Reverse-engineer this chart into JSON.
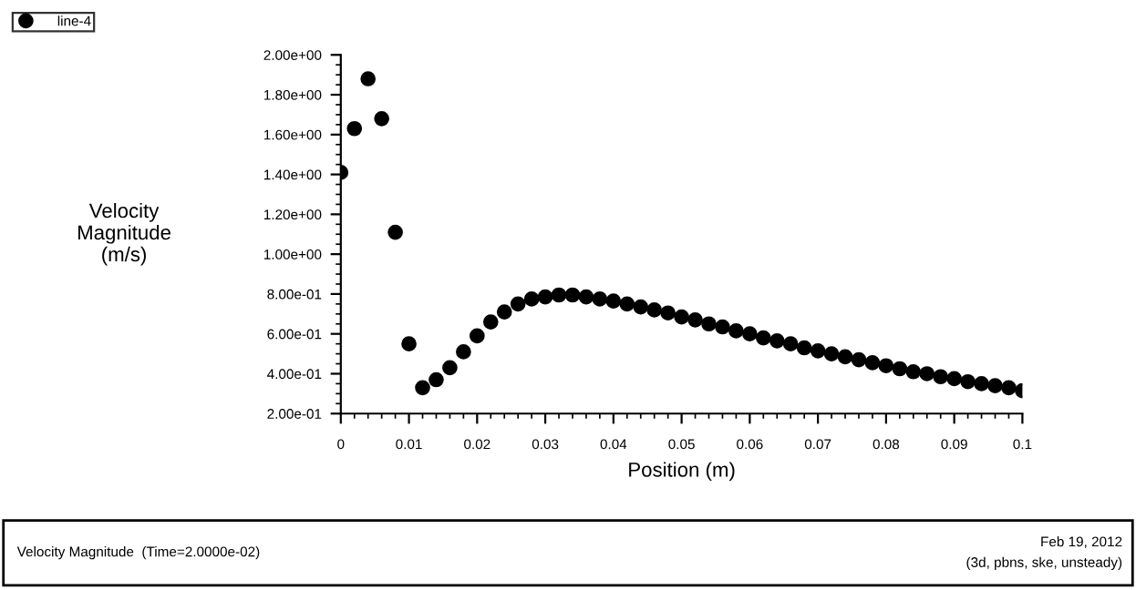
{
  "chart_data": {
    "type": "scatter",
    "xlabel": "Position (m)",
    "ylabel": "Velocity\nMagnitude\n(m/s)",
    "x": [
      0,
      0.002,
      0.004,
      0.006,
      0.008,
      0.01,
      0.012,
      0.014,
      0.016,
      0.018,
      0.02,
      0.022,
      0.024,
      0.026,
      0.028,
      0.03,
      0.032,
      0.034,
      0.036,
      0.038,
      0.04,
      0.042,
      0.044,
      0.046,
      0.048,
      0.05,
      0.052,
      0.054,
      0.056,
      0.058,
      0.06,
      0.062,
      0.064,
      0.066,
      0.068,
      0.07,
      0.072,
      0.074,
      0.076,
      0.078,
      0.08,
      0.082,
      0.084,
      0.086,
      0.088,
      0.09,
      0.092,
      0.094,
      0.096,
      0.098,
      0.1
    ],
    "series": [
      {
        "name": "line-4",
        "color": "#000000",
        "values": [
          1.41,
          1.63,
          1.88,
          1.68,
          1.11,
          0.55,
          0.33,
          0.37,
          0.43,
          0.51,
          0.59,
          0.66,
          0.71,
          0.75,
          0.775,
          0.785,
          0.795,
          0.795,
          0.785,
          0.775,
          0.765,
          0.75,
          0.735,
          0.72,
          0.705,
          0.685,
          0.67,
          0.65,
          0.635,
          0.615,
          0.6,
          0.58,
          0.565,
          0.55,
          0.53,
          0.515,
          0.5,
          0.485,
          0.47,
          0.455,
          0.44,
          0.425,
          0.41,
          0.4,
          0.385,
          0.375,
          0.36,
          0.35,
          0.34,
          0.33,
          0.315
        ]
      }
    ],
    "xlim": [
      0,
      0.1
    ],
    "xticks": [
      0,
      0.01,
      0.02,
      0.03,
      0.04,
      0.05,
      0.06,
      0.07,
      0.08,
      0.09,
      0.1
    ],
    "ylim": [
      0.2,
      2.0
    ],
    "yticks": [
      {
        "value": 0.2,
        "label": "2.00e-01"
      },
      {
        "value": 0.4,
        "label": "4.00e-01"
      },
      {
        "value": 0.6,
        "label": "6.00e-01"
      },
      {
        "value": 0.8,
        "label": "8.00e-01"
      },
      {
        "value": 1.0,
        "label": "1.00e+00"
      },
      {
        "value": 1.2,
        "label": "1.20e+00"
      },
      {
        "value": 1.4,
        "label": "1.40e+00"
      },
      {
        "value": 1.6,
        "label": "1.60e+00"
      },
      {
        "value": 1.8,
        "label": "1.80e+00"
      },
      {
        "value": 2.0,
        "label": "2.00e+00"
      }
    ],
    "marker": "circle",
    "grid": false,
    "legend": "top left",
    "annotations": [
      "Velocity Magnitude  (Time=2.0000e-02)",
      "Feb 19, 2012",
      "(3d, pbns, ske, unsteady)"
    ]
  }
}
